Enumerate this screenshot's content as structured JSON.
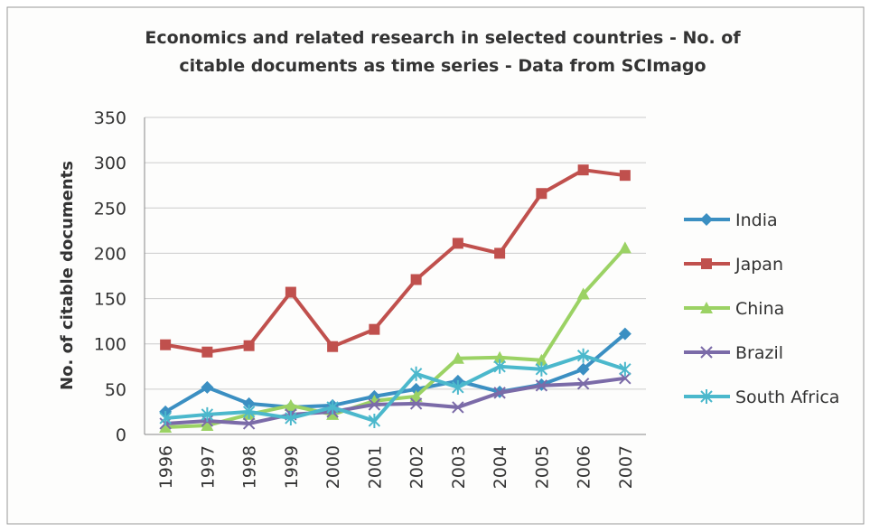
{
  "chart_data": {
    "type": "line",
    "title": "Economics and related research in selected countries - No. of citable documents as time series - Data from SCImago",
    "ylabel": "No. of citable documents",
    "categories": [
      "1996",
      "1997",
      "1998",
      "1999",
      "2000",
      "2001",
      "2002",
      "2003",
      "2004",
      "2005",
      "2006",
      "2007"
    ],
    "series": [
      {
        "name": "India",
        "color": "#3b8fc2",
        "marker": "diamond",
        "values": [
          25,
          52,
          34,
          30,
          32,
          42,
          50,
          59,
          47,
          55,
          72,
          111
        ]
      },
      {
        "name": "Japan",
        "color": "#c0504d",
        "marker": "square",
        "values": [
          99,
          91,
          98,
          157,
          97,
          116,
          171,
          211,
          200,
          266,
          292,
          286
        ]
      },
      {
        "name": "China",
        "color": "#9bd264",
        "marker": "triangle",
        "values": [
          8,
          10,
          22,
          32,
          22,
          37,
          42,
          84,
          85,
          82,
          155,
          206
        ]
      },
      {
        "name": "Brazil",
        "color": "#7b6ba8",
        "marker": "x",
        "values": [
          12,
          15,
          12,
          22,
          25,
          33,
          34,
          30,
          46,
          54,
          56,
          62
        ]
      },
      {
        "name": "South Africa",
        "color": "#4bb8cc",
        "marker": "star",
        "values": [
          18,
          22,
          25,
          18,
          30,
          15,
          67,
          52,
          75,
          72,
          87,
          72
        ]
      }
    ],
    "ylim": [
      0,
      350
    ],
    "yticks": [
      0,
      50,
      100,
      150,
      200,
      250,
      300,
      350
    ],
    "grid": true,
    "legend": "right"
  }
}
